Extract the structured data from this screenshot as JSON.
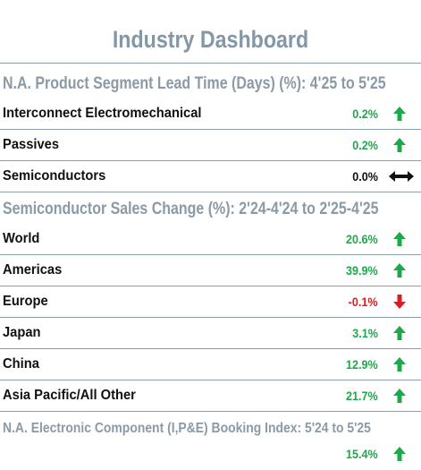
{
  "title": "Industry Dashboard",
  "colors": {
    "header_text": "#8497a6",
    "rule": "#8aa0ad",
    "positive": "#1ea84a",
    "negative": "#e01b22",
    "neutral": "#111111"
  },
  "sections": {
    "lead_time": {
      "header": "N.A. Product Segment Lead Time (Days) (%): 4'25 to 5'25",
      "rows": [
        {
          "label": "Interconnect Electromechanical",
          "value": "0.2%",
          "trend": "up",
          "icon": "arrow-up-icon"
        },
        {
          "label": "Passives",
          "value": "0.2%",
          "trend": "up",
          "icon": "arrow-up-icon"
        },
        {
          "label": "Semiconductors",
          "value": "0.0%",
          "trend": "flat",
          "icon": "double-arrow-horizontal-icon"
        }
      ]
    },
    "semi_sales": {
      "header": "Semiconductor Sales Change (%): 2'24-4'24 to 2'25-4'25",
      "rows": [
        {
          "label": "World",
          "value": "20.6%",
          "trend": "up",
          "icon": "arrow-up-icon"
        },
        {
          "label": "Americas",
          "value": "39.9%",
          "trend": "up",
          "icon": "arrow-up-icon"
        },
        {
          "label": "Europe",
          "value": "-0.1%",
          "trend": "down",
          "icon": "arrow-down-icon"
        },
        {
          "label": "Japan",
          "value": "3.1%",
          "trend": "up",
          "icon": "arrow-up-icon"
        },
        {
          "label": "China",
          "value": "12.9%",
          "trend": "up",
          "icon": "arrow-up-icon"
        },
        {
          "label": "Asia Pacific/All Other",
          "value": "21.7%",
          "trend": "up",
          "icon": "arrow-up-icon"
        }
      ]
    },
    "booking_index": {
      "header": "N.A. Electronic Component (I,P&E) Booking Index: 5'24 to 5'25",
      "rows": [
        {
          "label": "",
          "value": "15.4%",
          "trend": "up",
          "icon": "arrow-up-icon"
        }
      ]
    }
  }
}
